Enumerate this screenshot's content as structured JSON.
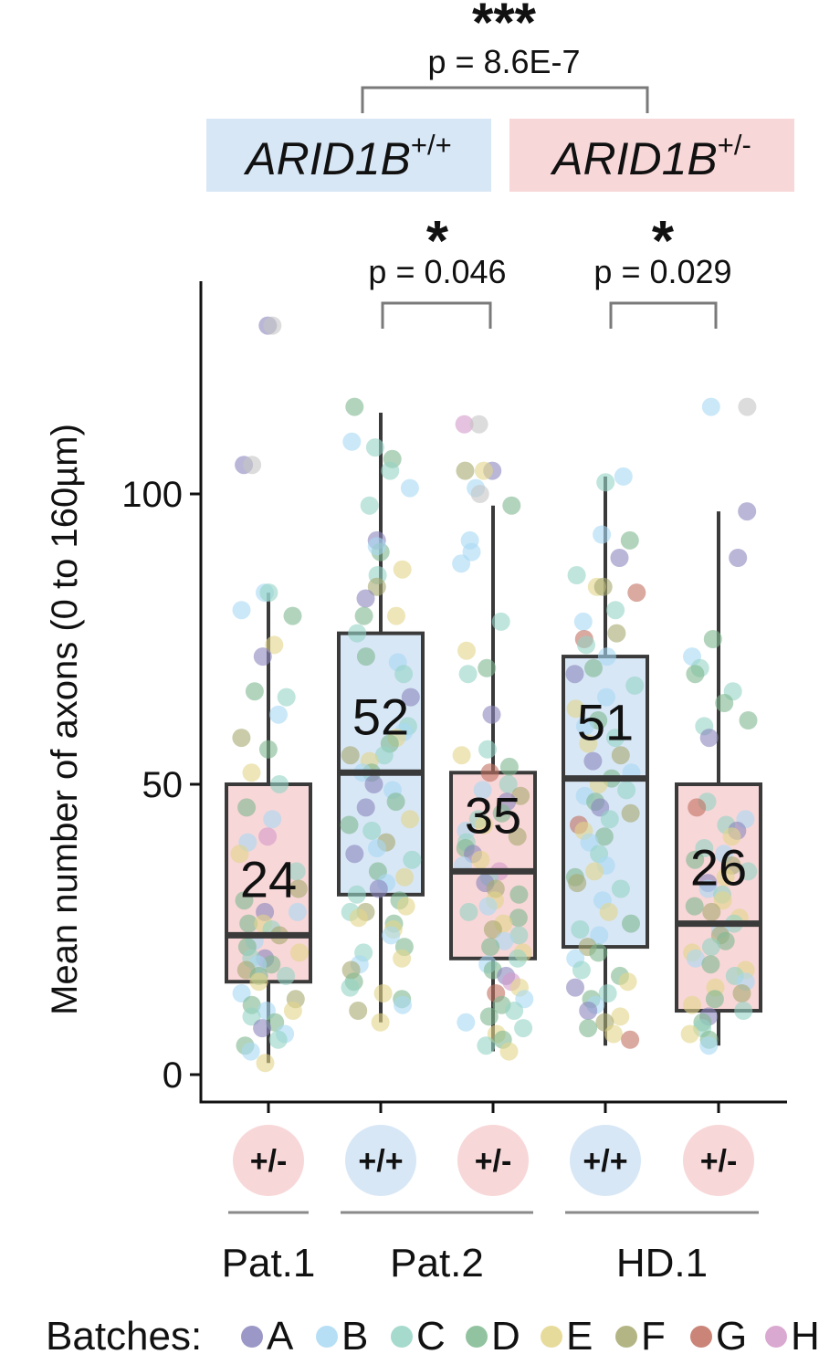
{
  "chart_data": {
    "type": "box",
    "ylabel": "Mean number of axons (0 to 160µm)",
    "ylim": [
      -5,
      135
    ],
    "y_ticks": [
      0,
      50,
      100
    ],
    "colors": {
      "wt_fill": "#d8e7f6",
      "het_fill": "#f8d7d8",
      "box_stroke": "#3a3a3a",
      "bracket": "#7a7a7a"
    },
    "genotype_headers": [
      {
        "text": "ARID1B",
        "sup": "+/+",
        "fill": "#d8e7f6"
      },
      {
        "text": "ARID1B",
        "sup": "+/-",
        "fill": "#f8d7d8"
      }
    ],
    "comparisons": [
      {
        "stars": "***",
        "p": "p = 8.6E-7",
        "from": "ARID1B+/+",
        "to": "ARID1B+/-"
      },
      {
        "stars": "*",
        "p": "p = 0.046",
        "from": 1,
        "to": 2
      },
      {
        "stars": "*",
        "p": "p = 0.029",
        "from": 3,
        "to": 4
      }
    ],
    "groups": [
      {
        "genotype": "+/-",
        "line": "Pat.1",
        "median": 24,
        "q1": 16,
        "q3": 50,
        "whisker_low": 2,
        "whisker_high": 83,
        "label": "24"
      },
      {
        "genotype": "+/+",
        "line": "Pat.2",
        "median": 52,
        "q1": 31,
        "q3": 76,
        "whisker_low": 9,
        "whisker_high": 114,
        "label": "52"
      },
      {
        "genotype": "+/-",
        "line": "Pat.2",
        "median": 35,
        "q1": 20,
        "q3": 52,
        "whisker_low": 4,
        "whisker_high": 98,
        "label": "35"
      },
      {
        "genotype": "+/+",
        "line": "HD.1",
        "median": 51,
        "q1": 22,
        "q3": 72,
        "whisker_low": 5,
        "whisker_high": 103,
        "label": "51"
      },
      {
        "genotype": "+/-",
        "line": "HD.1",
        "median": 26,
        "q1": 11,
        "q3": 50,
        "whisker_low": 5,
        "whisker_high": 97,
        "label": "26"
      }
    ],
    "cell_lines": [
      {
        "name": "Pat.1",
        "groups": [
          0
        ]
      },
      {
        "name": "Pat.2",
        "groups": [
          1,
          2
        ]
      },
      {
        "name": "HD.1",
        "groups": [
          3,
          4
        ]
      }
    ],
    "legend": {
      "title": "Batches:",
      "placement": "bottom",
      "items": [
        {
          "name": "A",
          "color": "#8a86bd"
        },
        {
          "name": "B",
          "color": "#a9d9f3"
        },
        {
          "name": "C",
          "color": "#95d3c4"
        },
        {
          "name": "D",
          "color": "#7fb88f"
        },
        {
          "name": "E",
          "color": "#e3d58a"
        },
        {
          "name": "F",
          "color": "#a7a86f"
        },
        {
          "name": "G",
          "color": "#c16f60"
        },
        {
          "name": "H",
          "color": "#d49ac9"
        }
      ]
    },
    "points": [
      [
        [
          129,
          "A"
        ],
        [
          129,
          "I"
        ],
        [
          105,
          "A"
        ],
        [
          105,
          "I"
        ],
        [
          83,
          "B"
        ],
        [
          83,
          "C"
        ],
        [
          80,
          "B"
        ],
        [
          79,
          "D"
        ],
        [
          74,
          "E"
        ],
        [
          72,
          "A"
        ],
        [
          66,
          "D"
        ],
        [
          65,
          "C"
        ],
        [
          62,
          "B"
        ],
        [
          58,
          "F"
        ],
        [
          56,
          "D"
        ],
        [
          52,
          "E"
        ],
        [
          50,
          "C"
        ],
        [
          46,
          "D"
        ],
        [
          44,
          "B"
        ],
        [
          41,
          "H"
        ],
        [
          40,
          "B"
        ],
        [
          38,
          "E"
        ],
        [
          35,
          "C"
        ],
        [
          32,
          "F"
        ],
        [
          30,
          "D"
        ],
        [
          28,
          "A"
        ],
        [
          28,
          "B"
        ],
        [
          26,
          "D"
        ],
        [
          26,
          "E"
        ],
        [
          25,
          "C"
        ],
        [
          24,
          "F"
        ],
        [
          23,
          "B"
        ],
        [
          22,
          "D"
        ],
        [
          21,
          "E"
        ],
        [
          20,
          "A"
        ],
        [
          20,
          "C"
        ],
        [
          19,
          "D"
        ],
        [
          19,
          "B"
        ],
        [
          18,
          "F"
        ],
        [
          17,
          "C"
        ],
        [
          17,
          "D"
        ],
        [
          16,
          "E"
        ],
        [
          14,
          "B"
        ],
        [
          13,
          "F"
        ],
        [
          12,
          "D"
        ],
        [
          11,
          "E"
        ],
        [
          11,
          "B"
        ],
        [
          10,
          "C"
        ],
        [
          9,
          "D"
        ],
        [
          8,
          "A"
        ],
        [
          7,
          "B"
        ],
        [
          6,
          "C"
        ],
        [
          5,
          "D"
        ],
        [
          4,
          "B"
        ],
        [
          2,
          "E"
        ]
      ],
      [
        [
          115,
          "D"
        ],
        [
          109,
          "B"
        ],
        [
          108,
          "C"
        ],
        [
          106,
          "D"
        ],
        [
          104,
          "C"
        ],
        [
          101,
          "B"
        ],
        [
          98,
          "C"
        ],
        [
          92,
          "A"
        ],
        [
          90,
          "D"
        ],
        [
          91,
          "B"
        ],
        [
          87,
          "E"
        ],
        [
          86,
          "C"
        ],
        [
          84,
          "F"
        ],
        [
          82,
          "A"
        ],
        [
          79,
          "D"
        ],
        [
          79,
          "E"
        ],
        [
          76,
          "C"
        ],
        [
          72,
          "D"
        ],
        [
          71,
          "B"
        ],
        [
          69,
          "C"
        ],
        [
          65,
          "A"
        ],
        [
          60,
          "C"
        ],
        [
          59,
          "B"
        ],
        [
          58,
          "E"
        ],
        [
          57,
          "D"
        ],
        [
          55,
          "C"
        ],
        [
          55,
          "F"
        ],
        [
          54,
          "E"
        ],
        [
          52,
          "D"
        ],
        [
          52,
          "B"
        ],
        [
          50,
          "A"
        ],
        [
          49,
          "B"
        ],
        [
          47,
          "D"
        ],
        [
          46,
          "A"
        ],
        [
          44,
          "E"
        ],
        [
          43,
          "D"
        ],
        [
          42,
          "C"
        ],
        [
          40,
          "F"
        ],
        [
          39,
          "B"
        ],
        [
          38,
          "A"
        ],
        [
          37,
          "C"
        ],
        [
          35,
          "D"
        ],
        [
          34,
          "E"
        ],
        [
          33,
          "B"
        ],
        [
          32,
          "A"
        ],
        [
          31,
          "C"
        ],
        [
          30,
          "D"
        ],
        [
          29,
          "E"
        ],
        [
          28,
          "F"
        ],
        [
          28,
          "C"
        ],
        [
          27,
          "E"
        ],
        [
          26,
          "D"
        ],
        [
          25,
          "E"
        ],
        [
          24,
          "B"
        ],
        [
          22,
          "D"
        ],
        [
          21,
          "C"
        ],
        [
          20,
          "E"
        ],
        [
          19,
          "B"
        ],
        [
          18,
          "F"
        ],
        [
          16,
          "D"
        ],
        [
          15,
          "C"
        ],
        [
          14,
          "E"
        ],
        [
          13,
          "D"
        ],
        [
          12,
          "B"
        ],
        [
          11,
          "F"
        ],
        [
          9,
          "E"
        ]
      ],
      [
        [
          112,
          "H"
        ],
        [
          112,
          "I"
        ],
        [
          104,
          "A"
        ],
        [
          104,
          "F"
        ],
        [
          104,
          "E"
        ],
        [
          101,
          "B"
        ],
        [
          100,
          "I"
        ],
        [
          98,
          "D"
        ],
        [
          92,
          "B"
        ],
        [
          90,
          "B"
        ],
        [
          88,
          "B"
        ],
        [
          78,
          "C"
        ],
        [
          73,
          "E"
        ],
        [
          70,
          "D"
        ],
        [
          69,
          "C"
        ],
        [
          62,
          "A"
        ],
        [
          56,
          "C"
        ],
        [
          55,
          "E"
        ],
        [
          53,
          "D"
        ],
        [
          52,
          "G"
        ],
        [
          50,
          "C"
        ],
        [
          49,
          "B"
        ],
        [
          48,
          "F"
        ],
        [
          47,
          "A"
        ],
        [
          45,
          "D"
        ],
        [
          44,
          "C"
        ],
        [
          43,
          "E"
        ],
        [
          42,
          "B"
        ],
        [
          41,
          "F"
        ],
        [
          40,
          "C"
        ],
        [
          39,
          "D"
        ],
        [
          38,
          "A"
        ],
        [
          37,
          "E"
        ],
        [
          36,
          "B"
        ],
        [
          35,
          "H"
        ],
        [
          34,
          "C"
        ],
        [
          33,
          "A"
        ],
        [
          32,
          "F"
        ],
        [
          31,
          "D"
        ],
        [
          30,
          "E"
        ],
        [
          29,
          "B"
        ],
        [
          28,
          "C"
        ],
        [
          27,
          "D"
        ],
        [
          26,
          "E"
        ],
        [
          25,
          "F"
        ],
        [
          24,
          "C"
        ],
        [
          23,
          "B"
        ],
        [
          22,
          "D"
        ],
        [
          21,
          "E"
        ],
        [
          20,
          "C"
        ],
        [
          19,
          "B"
        ],
        [
          18,
          "D"
        ],
        [
          17,
          "A"
        ],
        [
          16,
          "H"
        ],
        [
          15,
          "E"
        ],
        [
          14,
          "G"
        ],
        [
          13,
          "B"
        ],
        [
          12,
          "D"
        ],
        [
          11,
          "C"
        ],
        [
          10,
          "D"
        ],
        [
          9,
          "B"
        ],
        [
          8,
          "C"
        ],
        [
          7,
          "E"
        ],
        [
          6,
          "D"
        ],
        [
          5,
          "C"
        ],
        [
          4,
          "E"
        ]
      ],
      [
        [
          103,
          "B"
        ],
        [
          102,
          "C"
        ],
        [
          93,
          "B"
        ],
        [
          92,
          "D"
        ],
        [
          89,
          "A"
        ],
        [
          86,
          "C"
        ],
        [
          84,
          "E"
        ],
        [
          84,
          "F"
        ],
        [
          83,
          "G"
        ],
        [
          80,
          "C"
        ],
        [
          78,
          "B"
        ],
        [
          76,
          "F"
        ],
        [
          75,
          "G"
        ],
        [
          74,
          "C"
        ],
        [
          72,
          "B"
        ],
        [
          70,
          "D"
        ],
        [
          69,
          "A"
        ],
        [
          67,
          "C"
        ],
        [
          65,
          "B"
        ],
        [
          63,
          "E"
        ],
        [
          61,
          "D"
        ],
        [
          60,
          "B"
        ],
        [
          58,
          "C"
        ],
        [
          57,
          "E"
        ],
        [
          55,
          "F"
        ],
        [
          54,
          "A"
        ],
        [
          52,
          "B"
        ],
        [
          51,
          "D"
        ],
        [
          50,
          "E"
        ],
        [
          49,
          "C"
        ],
        [
          48,
          "B"
        ],
        [
          47,
          "D"
        ],
        [
          46,
          "A"
        ],
        [
          45,
          "F"
        ],
        [
          44,
          "C"
        ],
        [
          43,
          "G"
        ],
        [
          42,
          "E"
        ],
        [
          41,
          "D"
        ],
        [
          40,
          "B"
        ],
        [
          38,
          "C"
        ],
        [
          36,
          "B"
        ],
        [
          35,
          "E"
        ],
        [
          34,
          "D"
        ],
        [
          33,
          "F"
        ],
        [
          32,
          "C"
        ],
        [
          30,
          "B"
        ],
        [
          28,
          "E"
        ],
        [
          26,
          "D"
        ],
        [
          25,
          "C"
        ],
        [
          24,
          "B"
        ],
        [
          22,
          "F"
        ],
        [
          21,
          "D"
        ],
        [
          20,
          "B"
        ],
        [
          18,
          "C"
        ],
        [
          17,
          "D"
        ],
        [
          16,
          "E"
        ],
        [
          15,
          "A"
        ],
        [
          14,
          "C"
        ],
        [
          13,
          "D"
        ],
        [
          12,
          "B"
        ],
        [
          11,
          "A"
        ],
        [
          10,
          "E"
        ],
        [
          9,
          "F"
        ],
        [
          8,
          "D"
        ],
        [
          7,
          "E"
        ],
        [
          6,
          "G"
        ]
      ],
      [
        [
          115,
          "I"
        ],
        [
          115,
          "B"
        ],
        [
          97,
          "A"
        ],
        [
          89,
          "A"
        ],
        [
          75,
          "D"
        ],
        [
          72,
          "B"
        ],
        [
          70,
          "C"
        ],
        [
          69,
          "D"
        ],
        [
          66,
          "C"
        ],
        [
          64,
          "D"
        ],
        [
          61,
          "D"
        ],
        [
          60,
          "C"
        ],
        [
          58,
          "A"
        ],
        [
          47,
          "C"
        ],
        [
          46,
          "G"
        ],
        [
          44,
          "B"
        ],
        [
          43,
          "C"
        ],
        [
          42,
          "A"
        ],
        [
          41,
          "E"
        ],
        [
          39,
          "C"
        ],
        [
          38,
          "B"
        ],
        [
          37,
          "D"
        ],
        [
          36,
          "F"
        ],
        [
          35,
          "C"
        ],
        [
          34,
          "E"
        ],
        [
          33,
          "A"
        ],
        [
          32,
          "B"
        ],
        [
          31,
          "C"
        ],
        [
          30,
          "E"
        ],
        [
          29,
          "D"
        ],
        [
          28,
          "F"
        ],
        [
          27,
          "E"
        ],
        [
          26,
          "C"
        ],
        [
          25,
          "B"
        ],
        [
          24,
          "F"
        ],
        [
          23,
          "D"
        ],
        [
          22,
          "C"
        ],
        [
          21,
          "E"
        ],
        [
          20,
          "B"
        ],
        [
          19,
          "D"
        ],
        [
          18,
          "E"
        ],
        [
          17,
          "C"
        ],
        [
          16,
          "B"
        ],
        [
          15,
          "E"
        ],
        [
          14,
          "F"
        ],
        [
          13,
          "D"
        ],
        [
          12,
          "E"
        ],
        [
          11,
          "C"
        ],
        [
          10,
          "A"
        ],
        [
          9,
          "D"
        ],
        [
          8,
          "C"
        ],
        [
          7,
          "E"
        ],
        [
          6,
          "D"
        ],
        [
          5,
          "B"
        ]
      ]
    ]
  }
}
